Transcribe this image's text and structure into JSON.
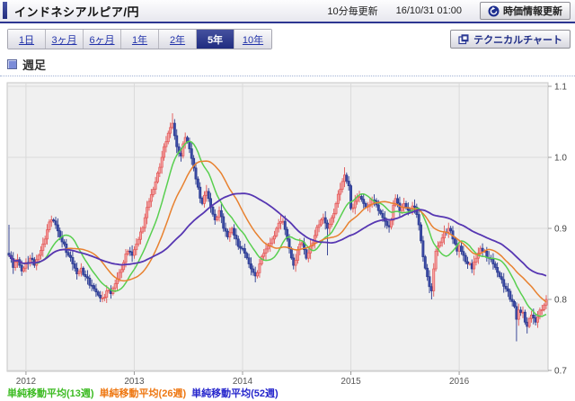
{
  "header": {
    "title": "インドネシアルピア/円",
    "update_note": "10分毎更新",
    "timestamp": "16/10/31 01:00",
    "refresh_button": "時価情報更新",
    "accent_color": "#2d3691"
  },
  "toolbar": {
    "range_tabs": [
      {
        "label": "1日",
        "active": false
      },
      {
        "label": "3ヶ月",
        "active": false
      },
      {
        "label": "6ヶ月",
        "active": false
      },
      {
        "label": "1年",
        "active": false
      },
      {
        "label": "2年",
        "active": false
      },
      {
        "label": "5年",
        "active": true
      },
      {
        "label": "10年",
        "active": false
      }
    ],
    "active_tab_color": "#1f2c80",
    "technical_chart_button": "テクニカルチャート"
  },
  "chart_header": {
    "label": "週足"
  },
  "legend": [
    {
      "label": "単純移動平均(13週)",
      "color": "#3cbb22"
    },
    {
      "label": "単純移動平均(26週)",
      "color": "#ee7711"
    },
    {
      "label": "単純移動平均(52週)",
      "color": "#2525cc"
    }
  ],
  "chart_data": {
    "type": "candlestick",
    "timeframe": "weekly",
    "title": "インドネシアルピア/円 週足 5年",
    "ylim": [
      0.7,
      1.1
    ],
    "y_ticks": [
      1.1,
      1.0,
      0.9,
      0.8,
      0.7
    ],
    "x_tick_labels": [
      "2012",
      "2013",
      "2014",
      "2015",
      "2016"
    ],
    "x_tick_weeks": [
      8,
      59,
      110,
      161,
      212
    ],
    "weeks_total": 254,
    "grid": true,
    "close_anchors": [
      [
        0,
        0.862
      ],
      [
        2,
        0.845
      ],
      [
        4,
        0.856
      ],
      [
        6,
        0.84
      ],
      [
        8,
        0.852
      ],
      [
        10,
        0.858
      ],
      [
        12,
        0.848
      ],
      [
        14,
        0.862
      ],
      [
        16,
        0.878
      ],
      [
        18,
        0.898
      ],
      [
        20,
        0.912
      ],
      [
        22,
        0.905
      ],
      [
        24,
        0.888
      ],
      [
        26,
        0.878
      ],
      [
        28,
        0.862
      ],
      [
        30,
        0.85
      ],
      [
        32,
        0.836
      ],
      [
        34,
        0.844
      ],
      [
        36,
        0.832
      ],
      [
        38,
        0.82
      ],
      [
        40,
        0.815
      ],
      [
        42,
        0.806
      ],
      [
        44,
        0.802
      ],
      [
        46,
        0.812
      ],
      [
        48,
        0.808
      ],
      [
        50,
        0.822
      ],
      [
        52,
        0.838
      ],
      [
        54,
        0.852
      ],
      [
        56,
        0.868
      ],
      [
        58,
        0.862
      ],
      [
        60,
        0.878
      ],
      [
        62,
        0.895
      ],
      [
        64,
        0.915
      ],
      [
        66,
        0.938
      ],
      [
        68,
        0.955
      ],
      [
        70,
        0.978
      ],
      [
        72,
        1.0
      ],
      [
        74,
        1.022
      ],
      [
        76,
        1.042
      ],
      [
        77,
        1.048
      ],
      [
        79,
        1.015
      ],
      [
        81,
        1.002
      ],
      [
        83,
        1.028
      ],
      [
        85,
        1.012
      ],
      [
        87,
        0.985
      ],
      [
        89,
        0.958
      ],
      [
        91,
        0.935
      ],
      [
        93,
        0.952
      ],
      [
        95,
        0.93
      ],
      [
        97,
        0.912
      ],
      [
        99,
        0.925
      ],
      [
        101,
        0.9
      ],
      [
        103,
        0.888
      ],
      [
        105,
        0.9
      ],
      [
        107,
        0.885
      ],
      [
        109,
        0.872
      ],
      [
        111,
        0.865
      ],
      [
        113,
        0.85
      ],
      [
        115,
        0.838
      ],
      [
        116,
        0.833
      ],
      [
        118,
        0.85
      ],
      [
        120,
        0.865
      ],
      [
        122,
        0.875
      ],
      [
        124,
        0.885
      ],
      [
        126,
        0.9
      ],
      [
        129,
        0.91
      ],
      [
        131,
        0.885
      ],
      [
        134,
        0.848
      ],
      [
        136,
        0.87
      ],
      [
        138,
        0.88
      ],
      [
        140,
        0.858
      ],
      [
        142,
        0.875
      ],
      [
        144,
        0.89
      ],
      [
        146,
        0.905
      ],
      [
        148,
        0.915
      ],
      [
        150,
        0.9
      ],
      [
        152,
        0.915
      ],
      [
        154,
        0.935
      ],
      [
        156,
        0.955
      ],
      [
        158,
        0.975
      ],
      [
        160,
        0.96
      ],
      [
        161,
        0.928
      ],
      [
        163,
        0.938
      ],
      [
        165,
        0.945
      ],
      [
        168,
        0.93
      ],
      [
        171,
        0.94
      ],
      [
        174,
        0.925
      ],
      [
        177,
        0.91
      ],
      [
        179,
        0.902
      ],
      [
        182,
        0.942
      ],
      [
        184,
        0.925
      ],
      [
        186,
        0.935
      ],
      [
        189,
        0.925
      ],
      [
        191,
        0.93
      ],
      [
        193,
        0.905
      ],
      [
        195,
        0.86
      ],
      [
        197,
        0.832
      ],
      [
        199,
        0.812
      ],
      [
        201,
        0.868
      ],
      [
        203,
        0.88
      ],
      [
        205,
        0.895
      ],
      [
        207,
        0.9
      ],
      [
        209,
        0.885
      ],
      [
        211,
        0.868
      ],
      [
        212,
        0.875
      ],
      [
        214,
        0.862
      ],
      [
        216,
        0.85
      ],
      [
        218,
        0.843
      ],
      [
        220,
        0.858
      ],
      [
        222,
        0.872
      ],
      [
        224,
        0.868
      ],
      [
        226,
        0.858
      ],
      [
        228,
        0.85
      ],
      [
        230,
        0.838
      ],
      [
        232,
        0.828
      ],
      [
        234,
        0.815
      ],
      [
        236,
        0.8
      ],
      [
        238,
        0.79
      ],
      [
        239,
        0.772
      ],
      [
        240,
        0.785
      ],
      [
        242,
        0.782
      ],
      [
        244,
        0.762
      ],
      [
        246,
        0.778
      ],
      [
        248,
        0.768
      ],
      [
        250,
        0.785
      ],
      [
        252,
        0.792
      ],
      [
        253,
        0.8
      ]
    ],
    "wick_events": {
      "0": {
        "high": 0.905
      },
      "20": {
        "high": 0.918
      },
      "44": {
        "low": 0.796
      },
      "77": {
        "high": 1.062
      },
      "116": {
        "low": 0.824
      },
      "150": {
        "low": 0.862
      },
      "158": {
        "high": 0.986
      },
      "182": {
        "high": 0.948
      },
      "199": {
        "low": 0.8
      },
      "218": {
        "low": 0.837
      },
      "239": {
        "low": 0.741
      },
      "244": {
        "low": 0.752
      },
      "253": {
        "high": 0.806
      }
    },
    "moving_averages": [
      {
        "window": 13,
        "color": "#58cf4f"
      },
      {
        "window": 26,
        "color": "#e8812f"
      },
      {
        "window": 52,
        "color": "#5636b2"
      }
    ],
    "up_candle": {
      "fill": "#f5a3a3",
      "stroke": "#e25555"
    },
    "down_candle": {
      "fill": "#3c4ca6",
      "stroke": "#29388f"
    },
    "plot_bg": "#f0f0f0",
    "grid_color": "#dadada",
    "border_color": "#c5c5c5",
    "axis_text_color": "#555"
  }
}
